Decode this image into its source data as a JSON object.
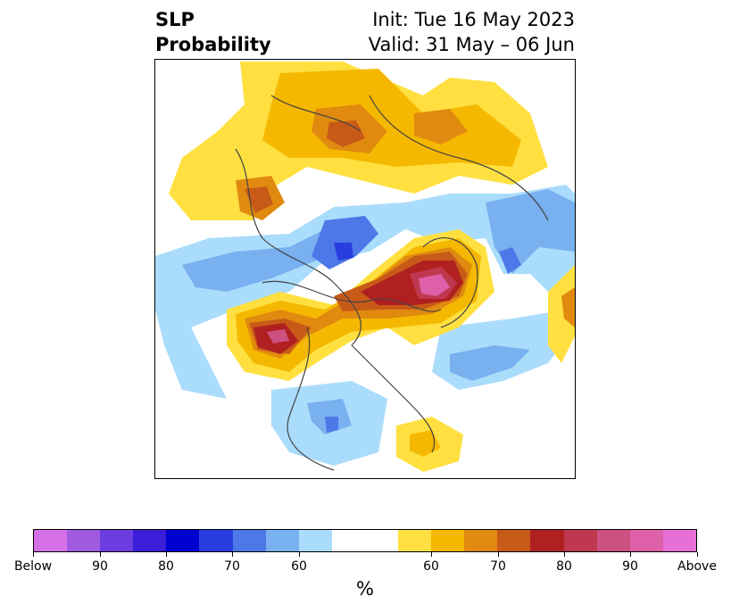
{
  "title": {
    "left_line1": "SLP",
    "left_line2": "Probability",
    "init": "Init: Tue 16 May 2023",
    "valid": "Valid: 31 May – 06 Jun"
  },
  "colorbar": {
    "colors": [
      "#d670e8",
      "#a05ae0",
      "#6c3ee0",
      "#3a1ed8",
      "#0000d0",
      "#2a3de0",
      "#4d78e8",
      "#78b0f0",
      "#aadcfc",
      "#ffffff",
      "#ffffff",
      "#ffe040",
      "#f5b800",
      "#e08a10",
      "#c85a18",
      "#b02020",
      "#c03850",
      "#cc5080",
      "#dd60a8",
      "#e670d8"
    ],
    "tick_labels": [
      "Below",
      "90",
      "80",
      "70",
      "60",
      "60",
      "70",
      "80",
      "90",
      "Above"
    ],
    "unit": "%"
  }
}
